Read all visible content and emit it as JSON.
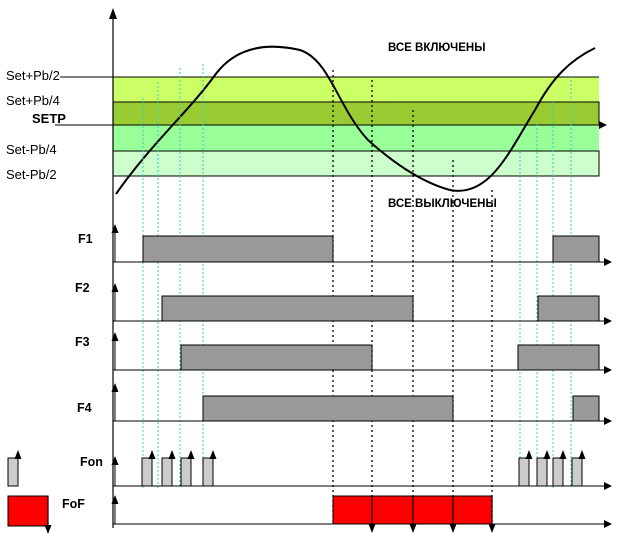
{
  "bands": {
    "set_plus_pb2": "Set+Pb/2",
    "set_plus_pb4": "Set+Pb/4",
    "setp": "SETP",
    "set_minus_pb4": "Set-Pb/4",
    "set_minus_pb2": "Set-Pb/2"
  },
  "states": {
    "all_on": "ВСЕ ВКЛЮЧЕНЫ",
    "all_off": "ВСЕ ВЫКЛЮЧЕНЫ"
  },
  "rows": {
    "f1": "F1",
    "f2": "F2",
    "f3": "F3",
    "f4": "F4",
    "fon": "Fon",
    "fof": "FoF"
  },
  "colors": {
    "band_light_green": "#ccff66",
    "band_dark_green": "#99cc33",
    "band_mid_green": "#99ff99",
    "band_pale_green": "#ccffcc",
    "bar_gray": "#999999",
    "fof_red": "#ff0000",
    "guide_cyan": "#33cccc"
  }
}
